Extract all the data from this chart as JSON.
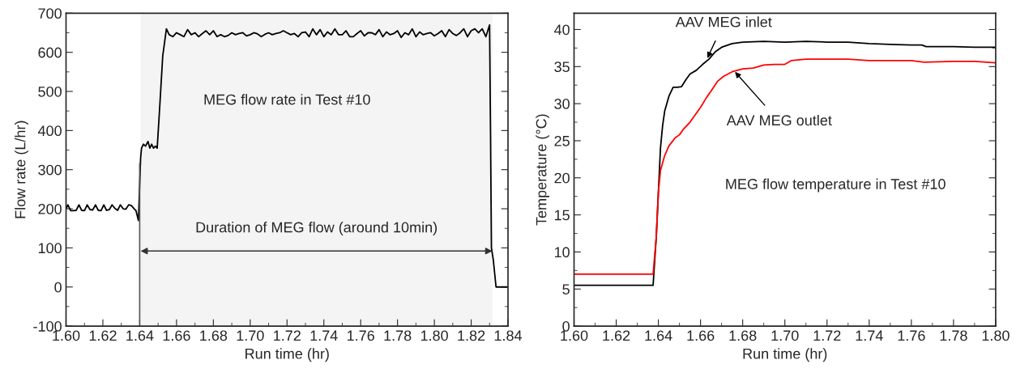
{
  "chart_data": [
    {
      "type": "line",
      "xlabel": "Run time (hr)",
      "ylabel": "Flow rate (L/hr)",
      "xlim": [
        1.6,
        1.84
      ],
      "xticks": [
        {
          "value": 1.6,
          "label": "1.60"
        },
        1.62,
        1.64,
        1.66,
        1.68,
        {
          "value": 1.7,
          "label": "1.70"
        },
        1.72,
        1.74,
        1.76,
        1.78,
        {
          "value": 1.8,
          "label": "1.80"
        },
        1.82,
        1.84
      ],
      "ylim": [
        -100,
        700
      ],
      "yticks": [
        -100,
        0,
        100,
        200,
        300,
        400,
        500,
        600,
        700
      ],
      "grid": false,
      "series": [
        {
          "color": "#000000",
          "x": [
            1.6,
            1.601,
            1.6025,
            1.604,
            1.6055,
            1.607,
            1.6085,
            1.61,
            1.6115,
            1.613,
            1.6145,
            1.616,
            1.6175,
            1.619,
            1.6205,
            1.622,
            1.6235,
            1.625,
            1.6265,
            1.628,
            1.6295,
            1.631,
            1.6325,
            1.634,
            1.6355,
            1.637,
            1.638,
            1.6393,
            1.6405,
            1.641,
            1.642,
            1.6432,
            1.6445,
            1.6455,
            1.6465,
            1.6475,
            1.6485,
            1.6495,
            1.651,
            1.6525,
            1.6545,
            1.656,
            1.658,
            1.66,
            1.662,
            1.664,
            1.666,
            1.668,
            1.67,
            1.672,
            1.674,
            1.676,
            1.678,
            1.68,
            1.682,
            1.684,
            1.686,
            1.688,
            1.69,
            1.692,
            1.694,
            1.696,
            1.698,
            1.7,
            1.702,
            1.704,
            1.706,
            1.708,
            1.71,
            1.712,
            1.714,
            1.716,
            1.718,
            1.72,
            1.722,
            1.724,
            1.726,
            1.728,
            1.73,
            1.732,
            1.734,
            1.736,
            1.738,
            1.74,
            1.742,
            1.744,
            1.746,
            1.748,
            1.75,
            1.752,
            1.754,
            1.756,
            1.758,
            1.76,
            1.762,
            1.764,
            1.766,
            1.768,
            1.77,
            1.772,
            1.774,
            1.776,
            1.778,
            1.78,
            1.782,
            1.784,
            1.786,
            1.788,
            1.79,
            1.792,
            1.794,
            1.796,
            1.798,
            1.8,
            1.802,
            1.804,
            1.806,
            1.808,
            1.81,
            1.812,
            1.814,
            1.816,
            1.818,
            1.82,
            1.822,
            1.824,
            1.826,
            1.828,
            1.83,
            1.8305,
            1.831,
            1.832,
            1.8335,
            1.84
          ],
          "values": [
            200,
            210,
            195,
            195,
            196,
            210,
            196,
            195,
            210,
            198,
            197,
            210,
            196,
            195,
            210,
            196,
            198,
            210,
            201,
            196,
            210,
            200,
            199,
            210,
            208,
            200,
            195,
            170,
            330,
            355,
            365,
            360,
            372,
            355,
            365,
            355,
            360,
            355,
            470,
            590,
            660,
            645,
            640,
            650,
            645,
            640,
            658,
            645,
            650,
            640,
            648,
            655,
            645,
            655,
            640,
            645,
            640,
            643,
            650,
            645,
            648,
            650,
            642,
            645,
            650,
            647,
            640,
            646,
            650,
            645,
            648,
            650,
            655,
            650,
            645,
            648,
            640,
            650,
            652,
            640,
            660,
            645,
            658,
            640,
            652,
            645,
            660,
            645,
            645,
            655,
            640,
            640,
            648,
            655,
            642,
            650,
            650,
            645,
            658,
            640,
            652,
            645,
            648,
            655,
            638,
            650,
            645,
            660,
            640,
            652,
            645,
            648,
            650,
            642,
            648,
            655,
            640,
            658,
            648,
            643,
            650,
            660,
            640,
            655,
            660,
            650,
            660,
            640,
            670,
            400,
            100,
            70,
            0,
            0
          ]
        }
      ],
      "annotations": [
        "MEG flow rate in Test #10"
      ],
      "ref_lines": [
        {
          "axis": "x",
          "value": 1.64
        }
      ],
      "bands": [
        {
          "axis": "x",
          "from": 1.6405,
          "to": 1.8315,
          "label": "Duration of MEG flow (around 10min)",
          "color": "#f4f4f4"
        }
      ]
    },
    {
      "type": "line",
      "xlabel": "Run time (hr)",
      "ylabel": "Temperature (°C)",
      "xlim": [
        1.6,
        1.8
      ],
      "xticks": [
        {
          "value": 1.6,
          "label": "1.60"
        },
        1.62,
        1.64,
        1.66,
        1.68,
        {
          "value": 1.7,
          "label": "1.70"
        },
        1.72,
        1.74,
        1.76,
        1.78,
        {
          "value": 1.8,
          "label": "1.80"
        }
      ],
      "ylim": [
        0,
        42.2
      ],
      "yticks": [
        0,
        5,
        10,
        15,
        20,
        25,
        30,
        35,
        40
      ],
      "grid": false,
      "series": [
        {
          "color": "#000000",
          "x": [
            1.6,
            1.62,
            1.6375,
            1.639,
            1.64,
            1.641,
            1.642,
            1.643,
            1.645,
            1.647,
            1.649,
            1.651,
            1.653,
            1.655,
            1.658,
            1.661,
            1.664,
            1.667,
            1.67,
            1.675,
            1.68,
            1.69,
            1.7,
            1.71,
            1.72,
            1.73,
            1.74,
            1.75,
            1.76,
            1.765,
            1.767,
            1.78,
            1.79,
            1.8
          ],
          "values": [
            5.5,
            5.5,
            5.5,
            12,
            18,
            24,
            27,
            29,
            31,
            32.2,
            32.2,
            32.3,
            33.2,
            34.0,
            34.5,
            35.3,
            36.0,
            37.0,
            37.6,
            38.1,
            38.3,
            38.4,
            38.3,
            38.4,
            38.3,
            38.3,
            38.1,
            38.0,
            37.9,
            37.9,
            37.7,
            37.7,
            37.6,
            37.6
          ]
        },
        {
          "color": "#ff0000",
          "x": [
            1.6,
            1.62,
            1.6375,
            1.639,
            1.64,
            1.641,
            1.643,
            1.645,
            1.648,
            1.65,
            1.652,
            1.655,
            1.658,
            1.66,
            1.663,
            1.665,
            1.668,
            1.671,
            1.675,
            1.68,
            1.685,
            1.69,
            1.695,
            1.7,
            1.703,
            1.71,
            1.72,
            1.73,
            1.74,
            1.75,
            1.76,
            1.766,
            1.78,
            1.79,
            1.8
          ],
          "values": [
            7.0,
            7.0,
            7.0,
            12,
            18,
            21,
            23,
            24.3,
            25.4,
            25.8,
            26.6,
            27.5,
            28.7,
            29.5,
            30.9,
            31.7,
            33.0,
            33.7,
            34.3,
            34.7,
            34.8,
            35.2,
            35.3,
            35.3,
            35.8,
            36.0,
            36.0,
            36.0,
            35.8,
            35.8,
            35.8,
            35.6,
            35.7,
            35.7,
            35.5
          ]
        }
      ],
      "annotations": [
        {
          "text": "AAV MEG inlet",
          "x": 1.663,
          "y": 36.0
        },
        {
          "text": "AAV MEG outlet",
          "x": 1.676,
          "y": 34.4
        },
        "MEG flow temperature in Test #10"
      ]
    }
  ]
}
